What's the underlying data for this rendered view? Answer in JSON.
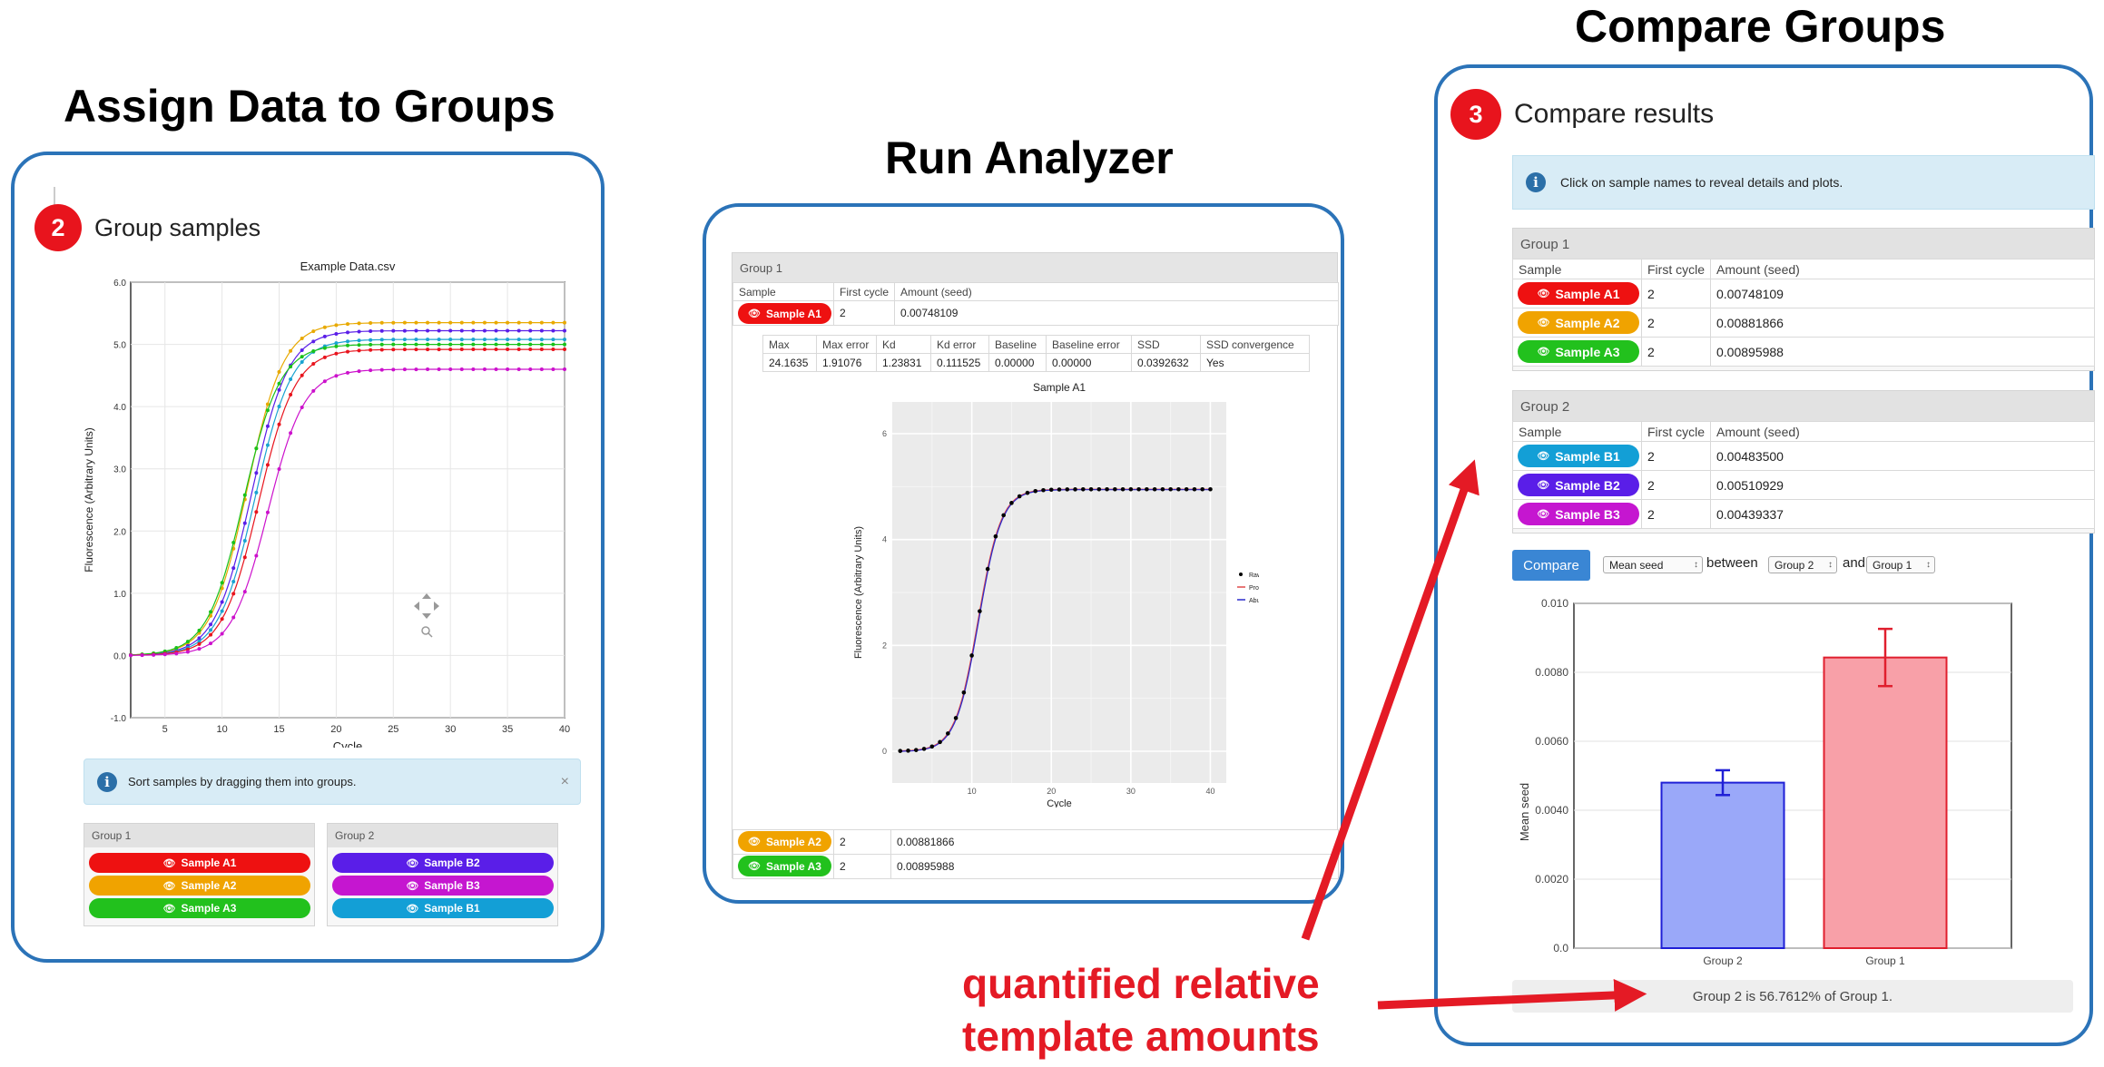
{
  "titles": {
    "assign": "Assign Data to Groups",
    "run": "Run Analyzer",
    "compare": "Compare Groups"
  },
  "colors": {
    "panel_border": "#2b73b8",
    "step_badge": "#e8141d",
    "arrow": "#e41a25",
    "bar_group2": "#9aa8f9",
    "bar_group1": "#f8a0a8"
  },
  "group_panel": {
    "step_number": "2",
    "step_label": "Group samples",
    "hint": "Sort samples by dragging them into groups.",
    "close_symbol": "×",
    "plot": {
      "title": "Example Data.csv",
      "xlabel": "Cycle",
      "ylabel": "Fluorescence (Arbitrary Units)",
      "x_ticks": [
        "5",
        "10",
        "15",
        "20",
        "25",
        "30",
        "35",
        "40"
      ],
      "y_ticks": [
        "-1.0",
        "0.0",
        "1.0",
        "2.0",
        "3.0",
        "4.0",
        "5.0",
        "6.0"
      ],
      "curves": [
        {
          "color": "#e8a900",
          "plateau": 5.35,
          "mid": 12.2
        },
        {
          "color": "#5a1ee8",
          "plateau": 5.22,
          "mid": 12.6
        },
        {
          "color": "#1aa3d1",
          "plateau": 5.08,
          "mid": 12.9
        },
        {
          "color": "#19c21a",
          "plateau": 5.0,
          "mid": 11.9
        },
        {
          "color": "#e8141d",
          "plateau": 4.92,
          "mid": 13.2
        },
        {
          "color": "#cc11cc",
          "plateau": 4.6,
          "mid": 14.0
        }
      ]
    },
    "group1": {
      "title": "Group 1",
      "samples": [
        {
          "name": "Sample A1",
          "color": "#ee1111"
        },
        {
          "name": "Sample A2",
          "color": "#f0a300"
        },
        {
          "name": "Sample A3",
          "color": "#22c11d"
        }
      ]
    },
    "group2": {
      "title": "Group 2",
      "samples": [
        {
          "name": "Sample B2",
          "color": "#5a1ee8"
        },
        {
          "name": "Sample B3",
          "color": "#c516d0"
        },
        {
          "name": "Sample B1",
          "color": "#139fd6"
        }
      ]
    }
  },
  "run_panel": {
    "group_title": "Group 1",
    "headers": [
      "Sample",
      "First cycle",
      "Amount (seed)"
    ],
    "sample_a1": {
      "name": "Sample A1",
      "first_cycle": "2",
      "amount": "0.00748109",
      "color": "#ee1111"
    },
    "stats_headers": [
      "Max",
      "Max error",
      "Kd",
      "Kd error",
      "Baseline",
      "Baseline error",
      "SSD",
      "SSD convergence"
    ],
    "stats_values": [
      "24.1635",
      "1.91076",
      "1.23831",
      "0.111525",
      "0.00000",
      "0.00000",
      "0.0392632",
      "Yes"
    ],
    "plot": {
      "title": "Sample A1",
      "xlabel": "Cycle",
      "ylabel": "Fluorescence (Arbitrary Units)",
      "x_ticks": [
        "10",
        "20",
        "30",
        "40"
      ],
      "y_ticks": [
        "0",
        "2",
        "4",
        "6"
      ],
      "legend": [
        "Raw",
        "Profile",
        "Abundance"
      ]
    },
    "other_rows": [
      {
        "name": "Sample A2",
        "first_cycle": "2",
        "amount": "0.00881866",
        "color": "#f0a300"
      },
      {
        "name": "Sample A3",
        "first_cycle": "2",
        "amount": "0.00895988",
        "color": "#22c11d"
      }
    ]
  },
  "compare_panel": {
    "step_number": "3",
    "step_label": "Compare results",
    "hint": "Click on sample names to reveal details and plots.",
    "headers": [
      "Sample",
      "First cycle",
      "Amount (seed)"
    ],
    "group1": {
      "title": "Group 1",
      "rows": [
        {
          "name": "Sample A1",
          "first_cycle": "2",
          "amount": "0.00748109",
          "color": "#ee1111"
        },
        {
          "name": "Sample A2",
          "first_cycle": "2",
          "amount": "0.00881866",
          "color": "#f0a300"
        },
        {
          "name": "Sample A3",
          "first_cycle": "2",
          "amount": "0.00895988",
          "color": "#22c11d"
        }
      ]
    },
    "group2": {
      "title": "Group 2",
      "rows": [
        {
          "name": "Sample B1",
          "first_cycle": "2",
          "amount": "0.00483500",
          "color": "#139fd6"
        },
        {
          "name": "Sample B2",
          "first_cycle": "2",
          "amount": "0.00510929",
          "color": "#5a1ee8"
        },
        {
          "name": "Sample B3",
          "first_cycle": "2",
          "amount": "0.00439337",
          "color": "#c516d0"
        }
      ]
    },
    "controls": {
      "button": "Compare",
      "metric": "Mean seed",
      "between": "between",
      "group_a": "Group 2",
      "and": "and",
      "group_b": "Group 1"
    },
    "result": "Group 2 is 56.7612% of Group 1."
  },
  "chart_data": {
    "type": "bar",
    "categories": [
      "Group 2",
      "Group 1"
    ],
    "values": [
      0.0048,
      0.00843
    ],
    "errors": [
      0.00036,
      0.00083
    ],
    "ylabel": "Mean seed",
    "ylim": [
      0,
      0.01
    ],
    "y_ticks": [
      "0.0",
      "0.0020",
      "0.0040",
      "0.0060",
      "0.0080",
      "0.010"
    ],
    "grid": true
  },
  "caption": {
    "line1": "quantified relative",
    "line2": "template amounts"
  }
}
